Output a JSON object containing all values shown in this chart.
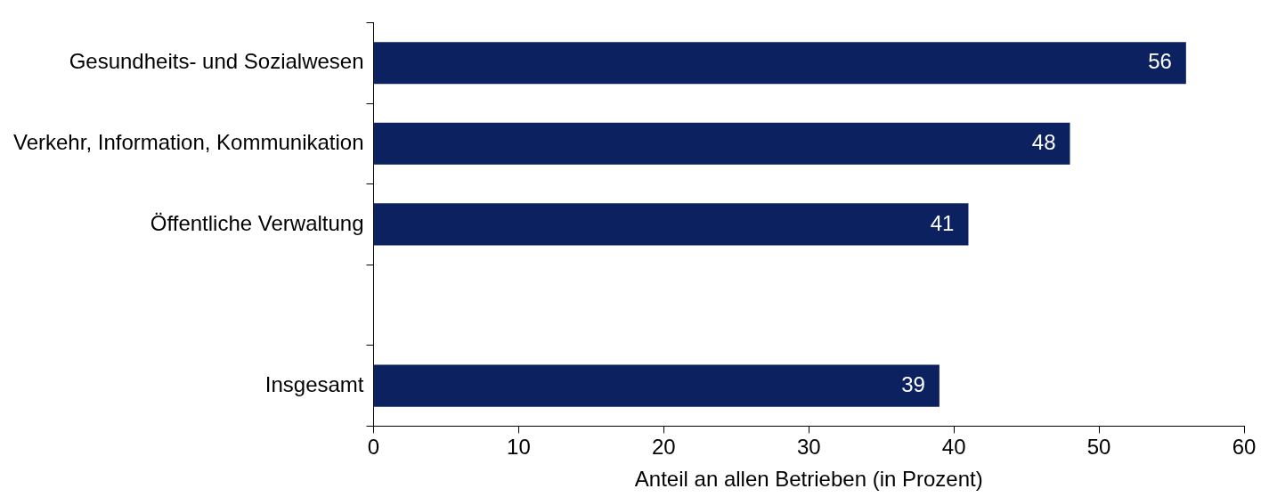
{
  "chart_data": {
    "type": "bar",
    "orientation": "horizontal",
    "categories": [
      "Gesundheits- und Sozialwesen",
      "Verkehr, Information, Kommunikation",
      "Öffentliche Verwaltung",
      null,
      "Insgesamt"
    ],
    "values": [
      56,
      48,
      41,
      null,
      39
    ],
    "color": "#0c2260",
    "xlabel": "Anteil an allen Betrieben (in Prozent)",
    "xlim": [
      0,
      60
    ],
    "xticks": [
      0,
      10,
      20,
      30,
      40,
      50,
      60
    ],
    "grid": false,
    "legend": false,
    "data_labels": true
  }
}
